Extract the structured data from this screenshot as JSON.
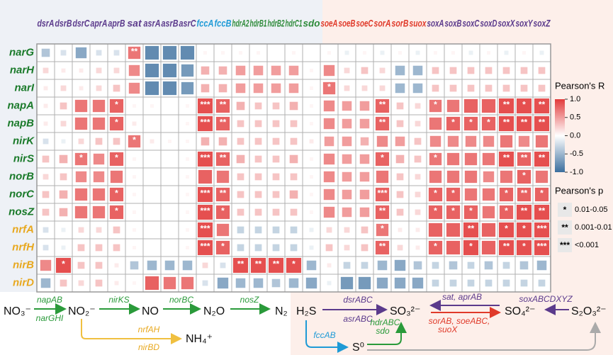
{
  "chart_data": {
    "type": "heatmap",
    "columns": [
      "dsrA",
      "dsrB",
      "dsrC",
      "aprA",
      "aprB",
      "sat",
      "asrA",
      "asrB",
      "asrC",
      "fccA",
      "fccB",
      "hdrA2",
      "hdrB1",
      "hdrB2",
      "hdrC1",
      "sdo",
      "soeA",
      "soeB",
      "soeC",
      "sorA",
      "sorB",
      "suox",
      "soxA",
      "soxB",
      "soxC",
      "soxD",
      "soxX",
      "soxY",
      "soxZ"
    ],
    "column_colors": [
      "#5b3a8c",
      "#5b3a8c",
      "#5b3a8c",
      "#5b3a8c",
      "#5b3a8c",
      "#5b3a8c",
      "#5b3a8c",
      "#5b3a8c",
      "#5b3a8c",
      "#1e9ad6",
      "#1e9ad6",
      "#2e8b3a",
      "#2e8b3a",
      "#2e8b3a",
      "#2e8b3a",
      "#2e8b3a",
      "#e03a2a",
      "#e03a2a",
      "#e03a2a",
      "#e03a2a",
      "#e03a2a",
      "#e03a2a",
      "#5b3a8c",
      "#5b3a8c",
      "#5b3a8c",
      "#5b3a8c",
      "#5b3a8c",
      "#5b3a8c",
      "#5b3a8c"
    ],
    "rows": [
      "narG",
      "narH",
      "narI",
      "napA",
      "napB",
      "nirK",
      "nirS",
      "norB",
      "norC",
      "nosZ",
      "nrfA",
      "nrfH",
      "nirB",
      "nirD"
    ],
    "row_colors": [
      "#1a7a2a",
      "#1a7a2a",
      "#1a7a2a",
      "#1a7a2a",
      "#1a7a2a",
      "#1a7a2a",
      "#1a7a2a",
      "#1a7a2a",
      "#1a7a2a",
      "#1a7a2a",
      "#e8a81e",
      "#e8a81e",
      "#e8a81e",
      "#e8a81e"
    ],
    "values": [
      [
        -0.4,
        -0.2,
        -0.6,
        -0.2,
        -0.2,
        0.7,
        -0.8,
        -0.8,
        -0.8,
        0.05,
        0.05,
        0.05,
        0.05,
        0,
        0.05,
        0,
        0.05,
        -0.1,
        0.05,
        -0.1,
        0.05,
        -0.1,
        0.05,
        0.05,
        -0.1,
        0.05,
        -0.1,
        0.05,
        -0.1
      ],
      [
        0.2,
        0.1,
        0.1,
        0.2,
        0.2,
        0.6,
        -0.8,
        -0.8,
        -0.7,
        0.4,
        0.4,
        0.5,
        0.5,
        0.5,
        0.5,
        0.05,
        0.6,
        0.2,
        0.3,
        0.2,
        -0.5,
        -0.5,
        0.3,
        0.3,
        0.3,
        0.3,
        0.3,
        0.3,
        0.3
      ],
      [
        0.1,
        0.2,
        0.1,
        0.2,
        0.3,
        0.6,
        -0.8,
        -0.8,
        -0.7,
        0.4,
        0.4,
        0.5,
        0.5,
        0.5,
        0.5,
        0.05,
        0.7,
        0.2,
        0.2,
        0.2,
        -0.5,
        -0.5,
        0.3,
        0.3,
        0.3,
        0.3,
        0.3,
        0.3,
        0.3
      ],
      [
        0.1,
        0.3,
        0.7,
        0.7,
        0.8,
        0.05,
        0.05,
        0,
        0.05,
        0.9,
        0.8,
        0.4,
        0.3,
        0.3,
        0.4,
        0.05,
        0.6,
        0.5,
        0.5,
        0.8,
        0.3,
        0.2,
        0.7,
        0.7,
        0.8,
        0.8,
        0.9,
        0.9,
        0.9
      ],
      [
        0.1,
        0.2,
        0.7,
        0.7,
        0.8,
        0.1,
        0,
        0,
        0.05,
        0.9,
        0.8,
        0.3,
        0.3,
        0.3,
        0.3,
        0.05,
        0.6,
        0.5,
        0.5,
        0.8,
        0.3,
        0.2,
        0.7,
        0.8,
        0.8,
        0.8,
        0.9,
        0.9,
        0.9
      ],
      [
        -0.2,
        -0.1,
        0.2,
        0.3,
        0.3,
        0.7,
        0.1,
        0.05,
        0.05,
        0.4,
        0.4,
        0.3,
        0.3,
        0.3,
        0.3,
        0.1,
        0.5,
        0.5,
        0.4,
        0.6,
        0.5,
        0.3,
        0.6,
        0.6,
        0.6,
        0.6,
        0.7,
        0.6,
        0.7
      ],
      [
        0.3,
        0.4,
        0.7,
        0.6,
        0.8,
        0.05,
        0,
        0,
        0.05,
        0.9,
        0.8,
        0.4,
        0.3,
        0.3,
        0.4,
        0.05,
        0.6,
        0.5,
        0.5,
        0.8,
        0.4,
        0.3,
        0.7,
        0.7,
        0.7,
        0.7,
        0.9,
        0.8,
        0.9
      ],
      [
        0.2,
        0.3,
        0.6,
        0.6,
        0.7,
        0.05,
        0,
        0,
        0.05,
        0.8,
        0.7,
        0.3,
        0.3,
        0.3,
        0.3,
        0.05,
        0.6,
        0.5,
        0.5,
        0.7,
        0.3,
        0.2,
        0.7,
        0.7,
        0.7,
        0.6,
        0.7,
        0.8,
        0.7
      ],
      [
        0.3,
        0.4,
        0.7,
        0.7,
        0.8,
        0.05,
        0,
        0,
        0.05,
        0.9,
        0.8,
        0.3,
        0.3,
        0.3,
        0.4,
        0.05,
        0.6,
        0.5,
        0.5,
        0.8,
        0.3,
        0.2,
        0.8,
        0.8,
        0.7,
        0.7,
        0.8,
        0.8,
        0.8
      ],
      [
        0.3,
        0.4,
        0.7,
        0.7,
        0.8,
        0.05,
        0,
        0,
        0.05,
        0.9,
        0.8,
        0.3,
        0.3,
        0.3,
        0.3,
        0.05,
        0.6,
        0.5,
        0.5,
        0.8,
        0.3,
        0.2,
        0.8,
        0.8,
        0.8,
        0.7,
        0.8,
        0.9,
        0.9
      ],
      [
        -0.2,
        -0.1,
        0.2,
        0.2,
        0.3,
        0.05,
        0,
        0,
        0.05,
        0.9,
        0.7,
        -0.3,
        -0.3,
        -0.3,
        -0.3,
        -0.1,
        0.2,
        0.2,
        0.3,
        0.7,
        0.1,
        0.1,
        0.8,
        0.8,
        0.9,
        0.8,
        0.9,
        0.9,
        0.9
      ],
      [
        -0.2,
        -0.1,
        0.3,
        0.3,
        0.3,
        0.05,
        0,
        0,
        0.05,
        0.9,
        0.8,
        -0.3,
        -0.3,
        -0.3,
        -0.3,
        -0.1,
        0.3,
        0.2,
        0.3,
        0.8,
        0.2,
        0.1,
        0.8,
        0.8,
        0.9,
        0.8,
        0.9,
        0.9,
        0.9
      ],
      [
        0.6,
        0.9,
        0.3,
        0.3,
        0.1,
        -0.4,
        -0.5,
        -0.5,
        -0.5,
        0.2,
        -0.2,
        0.9,
        0.9,
        0.9,
        0.9,
        -0.5,
        0.1,
        -0.3,
        -0.3,
        -0.5,
        -0.6,
        -0.4,
        -0.3,
        -0.4,
        -0.3,
        -0.4,
        -0.3,
        -0.4,
        -0.5
      ],
      [
        -0.5,
        0.3,
        0.2,
        0.3,
        0.1,
        0.05,
        0.8,
        0.7,
        0.7,
        -0.2,
        -0.6,
        -0.5,
        -0.5,
        -0.4,
        -0.5,
        -0.6,
        -0.1,
        -0.7,
        -0.7,
        -0.6,
        -0.6,
        -0.6,
        -0.3,
        -0.3,
        -0.3,
        -0.3,
        -0.3,
        -0.3,
        -0.3
      ]
    ],
    "stars": [
      [
        null,
        null,
        null,
        null,
        null,
        "**",
        null,
        null,
        null,
        null,
        null,
        null,
        null,
        null,
        null,
        null,
        null,
        null,
        null,
        null,
        null,
        null,
        null,
        null,
        null,
        null,
        null,
        null,
        null
      ],
      [
        null,
        null,
        null,
        null,
        null,
        null,
        null,
        null,
        null,
        null,
        null,
        null,
        null,
        null,
        null,
        null,
        null,
        null,
        null,
        null,
        null,
        null,
        null,
        null,
        null,
        null,
        null,
        null,
        null
      ],
      [
        null,
        null,
        null,
        null,
        null,
        null,
        null,
        null,
        null,
        null,
        null,
        null,
        null,
        null,
        null,
        null,
        "*",
        null,
        null,
        null,
        null,
        null,
        null,
        null,
        null,
        null,
        null,
        null,
        null
      ],
      [
        null,
        null,
        null,
        null,
        "*",
        null,
        null,
        null,
        null,
        "***",
        "**",
        null,
        null,
        null,
        null,
        null,
        null,
        null,
        null,
        "**",
        null,
        null,
        "*",
        null,
        null,
        null,
        "**",
        "*",
        "**"
      ],
      [
        null,
        null,
        null,
        null,
        "*",
        null,
        null,
        null,
        null,
        "***",
        "**",
        null,
        null,
        null,
        null,
        null,
        null,
        null,
        null,
        "**",
        null,
        null,
        null,
        "*",
        "*",
        "*",
        "**",
        "**",
        "**"
      ],
      [
        null,
        null,
        null,
        null,
        null,
        "*",
        null,
        null,
        null,
        null,
        null,
        null,
        null,
        null,
        null,
        null,
        null,
        null,
        null,
        null,
        null,
        null,
        null,
        null,
        null,
        null,
        null,
        null,
        null
      ],
      [
        null,
        null,
        "*",
        null,
        "*",
        null,
        null,
        null,
        null,
        "***",
        "**",
        null,
        null,
        null,
        null,
        null,
        null,
        null,
        null,
        "*",
        null,
        null,
        "*",
        null,
        null,
        null,
        "**",
        "**",
        "**"
      ],
      [
        null,
        null,
        null,
        null,
        null,
        null,
        null,
        null,
        null,
        null,
        null,
        null,
        null,
        null,
        null,
        null,
        null,
        null,
        null,
        null,
        null,
        null,
        null,
        null,
        null,
        null,
        null,
        "*",
        null
      ],
      [
        null,
        null,
        null,
        null,
        "*",
        null,
        null,
        null,
        null,
        "***",
        "**",
        null,
        null,
        null,
        null,
        null,
        null,
        null,
        null,
        "***",
        null,
        null,
        "*",
        "*",
        null,
        null,
        "*",
        "**",
        "*"
      ],
      [
        null,
        null,
        null,
        null,
        "*",
        null,
        null,
        null,
        null,
        "***",
        "*",
        null,
        null,
        null,
        null,
        null,
        null,
        null,
        null,
        "**",
        null,
        null,
        "*",
        "*",
        "*",
        null,
        "*",
        "**",
        "**"
      ],
      [
        null,
        null,
        null,
        null,
        null,
        null,
        null,
        null,
        null,
        "***",
        null,
        null,
        null,
        null,
        null,
        null,
        null,
        null,
        null,
        "*",
        null,
        null,
        null,
        null,
        "**",
        null,
        "*",
        "*",
        "***"
      ],
      [
        null,
        null,
        null,
        null,
        null,
        null,
        null,
        null,
        null,
        "***",
        "*",
        null,
        null,
        null,
        null,
        null,
        null,
        null,
        null,
        "**",
        null,
        null,
        "*",
        null,
        "*",
        null,
        "**",
        "*",
        "***"
      ],
      [
        null,
        "*",
        null,
        null,
        null,
        null,
        null,
        null,
        null,
        null,
        null,
        "**",
        "**",
        "**",
        "*",
        null,
        null,
        null,
        null,
        null,
        null,
        null,
        null,
        null,
        null,
        null,
        null,
        null,
        null
      ],
      [
        null,
        null,
        null,
        null,
        null,
        null,
        null,
        null,
        null,
        null,
        null,
        null,
        null,
        null,
        null,
        null,
        null,
        null,
        null,
        null,
        null,
        null,
        null,
        null,
        null,
        null,
        null,
        null,
        null
      ]
    ],
    "colormap": [
      "#3b6e9e",
      "#ffffff",
      "#e23b3b"
    ],
    "zlim": [
      -1,
      1
    ],
    "zticks": [
      {
        "value": 1,
        "label": "1.0"
      },
      0.5,
      {
        "value": 0,
        "label": "0.0"
      },
      -0.5,
      {
        "value": -1,
        "label": "-1.0"
      }
    ],
    "legend_title": "Pearson's R",
    "p_title": "Pearson's p",
    "p_levels": [
      {
        "symbol": "*",
        "range": "0.01-0.05"
      },
      {
        "symbol": "**",
        "range": "0.001-0.01"
      },
      {
        "symbol": "***",
        "range": "<0.001"
      }
    ]
  },
  "diagram": {
    "nodes": [
      "NO₃⁻",
      "NO₂⁻",
      "NO",
      "N₂O",
      "N₂",
      "NH₄⁺",
      "H₂S",
      "SO₃²⁻",
      "SO₄²⁻",
      "S₂O₃²⁻",
      "S⁰"
    ],
    "labels": [
      "napAB",
      "narGHI",
      "nirKS",
      "norBC",
      "nosZ",
      "nrfAH",
      "nirBD",
      "dsrABC",
      "asrABC",
      "sat, aprAB",
      "sorAB, soeABC,",
      "suoX",
      "soxABCDXYZ",
      "fccAB",
      "hdrABC,",
      "sdo"
    ]
  }
}
